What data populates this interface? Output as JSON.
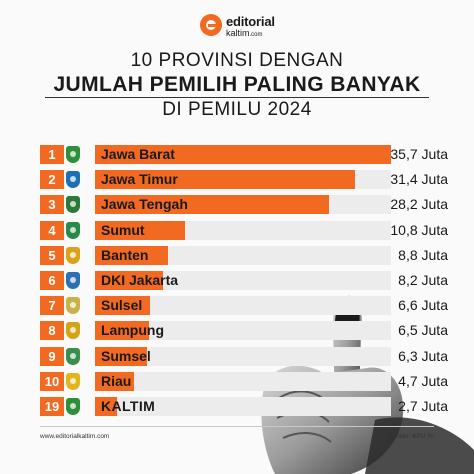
{
  "brand": {
    "name": "editorial",
    "sub": "kaltim",
    "sub_domain": ".com"
  },
  "title": {
    "line1": "10 PROVINSI DENGAN",
    "line2": "JUMLAH PEMILIH PALING BANYAK",
    "line3": "DI PEMILU 2024"
  },
  "colors": {
    "accent": "#f26a21",
    "text": "#1a1a1a"
  },
  "chart_data": {
    "type": "bar",
    "orientation": "horizontal",
    "title": "10 PROVINSI DENGAN JUMLAH PEMILIH PALING BANYAK DI PEMILU 2024",
    "unit": "Juta",
    "xlim": [
      0,
      35.7
    ],
    "categories": [
      "Jawa Barat",
      "Jawa Timur",
      "Jawa Tengah",
      "Sumut",
      "Banten",
      "DKI Jakarta",
      "Sulsel",
      "Lampung",
      "Sumsel",
      "Riau",
      "KALTIM"
    ],
    "ranks": [
      "1",
      "2",
      "3",
      "4",
      "5",
      "6",
      "7",
      "8",
      "9",
      "10",
      "19"
    ],
    "values": [
      35.7,
      31.4,
      28.2,
      10.8,
      8.8,
      8.2,
      6.6,
      6.5,
      6.3,
      4.7,
      2.7
    ],
    "value_labels": [
      "35,7 Juta",
      "31,4 Juta",
      "28,2 Juta",
      "10,8 Juta",
      "8,8 Juta",
      "8,2 Juta",
      "6,6 Juta",
      "6,5 Juta",
      "6,3 Juta",
      "4,7 Juta",
      "2,7 Juta"
    ],
    "emblems": [
      "west-java-emblem-icon",
      "east-java-emblem-icon",
      "central-java-emblem-icon",
      "north-sumatra-emblem-icon",
      "banten-emblem-icon",
      "jakarta-emblem-icon",
      "south-sulawesi-emblem-icon",
      "lampung-emblem-icon",
      "south-sumatra-emblem-icon",
      "riau-emblem-icon",
      "east-kalimantan-emblem-icon"
    ],
    "emblem_colors": [
      "#2f8f3a",
      "#1f6fb3",
      "#2b7a3a",
      "#2a8a4a",
      "#d9a21b",
      "#2e6fb0",
      "#c9b24a",
      "#d4a417",
      "#3a8f4f",
      "#e0b51e",
      "#2f8f3a"
    ]
  },
  "footer": {
    "url": "www.editorialkaltim.com",
    "source": "Sumber: KPU RI"
  }
}
